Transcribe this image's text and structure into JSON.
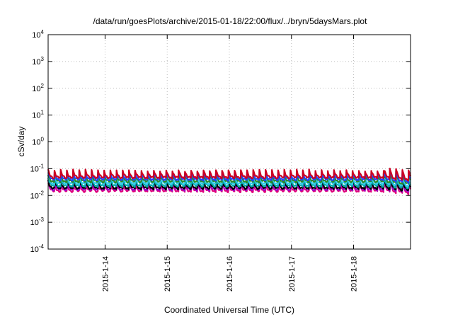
{
  "chart_data": {
    "type": "line",
    "title": "/data/run/goesPlots/archive/2015-01-18/22:00/flux/../bryn/5daysMars.plot",
    "xlabel": "Coordinated Universal Time (UTC)",
    "ylabel": "cSv/day",
    "yscale": "log",
    "ylim": [
      0.0001,
      10000
    ],
    "xlim": [
      "2015-01-13 02:00",
      "2015-01-18 22:00"
    ],
    "grid": true,
    "legend": "none",
    "y_ticks": [
      {
        "base": "10",
        "exp": "4",
        "value": 10000
      },
      {
        "base": "10",
        "exp": "3",
        "value": 1000
      },
      {
        "base": "10",
        "exp": "2",
        "value": 100
      },
      {
        "base": "10",
        "exp": "1",
        "value": 10
      },
      {
        "base": "10",
        "exp": "0",
        "value": 1
      },
      {
        "base": "10",
        "exp": "-1",
        "value": 0.1
      },
      {
        "base": "10",
        "exp": "-2",
        "value": 0.01
      },
      {
        "base": "10",
        "exp": "-3",
        "value": 0.001
      },
      {
        "base": "10",
        "exp": "-4",
        "value": 0.0001
      }
    ],
    "x_ticks": [
      {
        "label": "2015-1-14",
        "value": "2015-01-14 00:00"
      },
      {
        "label": "2015-1-15",
        "value": "2015-01-15 00:00"
      },
      {
        "label": "2015-1-16",
        "value": "2015-01-16 00:00"
      },
      {
        "label": "2015-1-17",
        "value": "2015-01-17 00:00"
      },
      {
        "label": "2015-1-18",
        "value": "2015-01-18 00:00"
      }
    ],
    "cycle_hours": 2.4,
    "series": [
      {
        "color": "#e0007a",
        "low": 0.014,
        "high": 0.03,
        "burst": 0.045,
        "low_end": 0.011
      },
      {
        "color": "#9b00cc",
        "low": 0.016,
        "high": 0.034,
        "burst": 0.05,
        "low_end": 0.013
      },
      {
        "color": "#000000",
        "low": 0.018,
        "high": 0.038,
        "burst": 0.056,
        "low_end": 0.014
      },
      {
        "color": "#00aaaa",
        "low": 0.022,
        "high": 0.046,
        "burst": 0.068,
        "low_end": 0.017
      },
      {
        "color": "#33ccee",
        "low": 0.027,
        "high": 0.056,
        "burst": 0.08,
        "low_end": 0.02
      },
      {
        "color": "#2a8a2a",
        "low": 0.032,
        "high": 0.064,
        "burst": 0.088,
        "low_end": 0.024
      },
      {
        "color": "#2244ff",
        "low": 0.038,
        "high": 0.075,
        "burst": 0.1,
        "low_end": 0.028
      },
      {
        "color": "#cc0022",
        "low": 0.045,
        "high": 0.088,
        "burst": 0.115,
        "low_end": 0.034
      }
    ],
    "burst_start": "2015-01-18 12:00"
  }
}
